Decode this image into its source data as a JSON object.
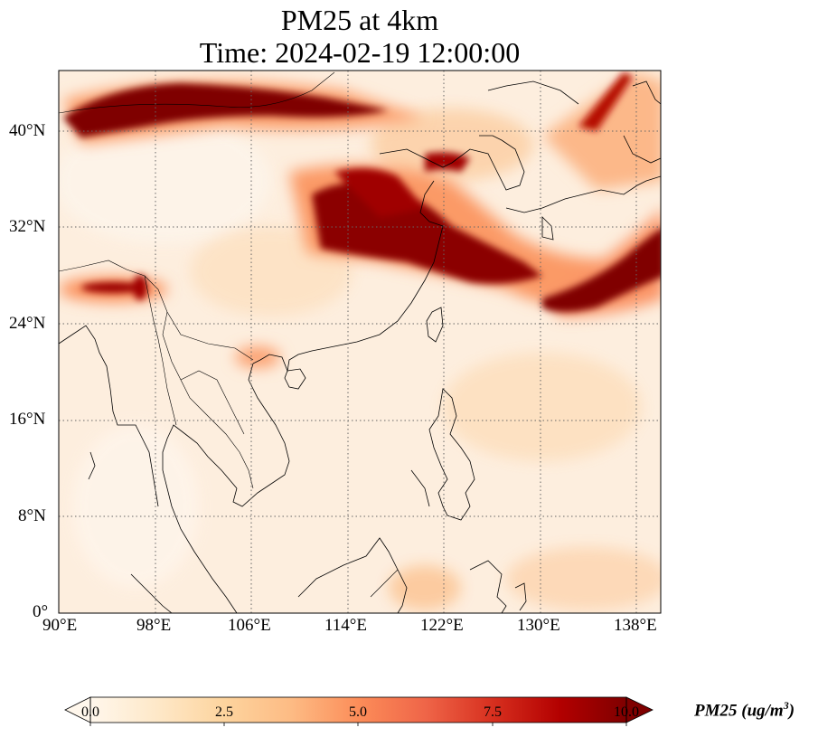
{
  "title": {
    "line1": "PM25 at 4km",
    "line2": "Time: 2024-02-19 12:00:00"
  },
  "map": {
    "projection": "PlateCarree",
    "extent": {
      "lon_min": 90,
      "lon_max": 140,
      "lat_min": 0,
      "lat_max": 45
    },
    "gridlines": "dotted",
    "x_ticks": [
      "90°E",
      "98°E",
      "106°E",
      "114°E",
      "122°E",
      "130°E",
      "138°E"
    ],
    "y_ticks": [
      "0°",
      "8°N",
      "16°N",
      "24°N",
      "32°N",
      "40°N"
    ],
    "variable": "PM25",
    "colormap": "OrRd",
    "high_pm25_regions": [
      "North China / Mongolia band near 40-44°N, 90-116°E",
      "East-central China 30-38°N, 110-122°E",
      "Plume over East China Sea extending east toward Japan 26-30°N",
      "Pacific band south of Japan 28-44°N, 130-140°E",
      "Northern Myanmar / Himalaya near 27°N, 90-98°E"
    ]
  },
  "colorbar": {
    "label_main": "PM25 (ug/m",
    "label_sup": "3",
    "label_end": ")",
    "ticks": [
      "0.0",
      "2.5",
      "5.0",
      "7.5",
      "10.0"
    ],
    "min": 0,
    "max": 10,
    "extend": "both",
    "colors": [
      "#fff7ec",
      "#fee8c8",
      "#fdd49e",
      "#fdbb84",
      "#fc8d59",
      "#ef6548",
      "#d7301f",
      "#b30000",
      "#7f0000"
    ]
  }
}
